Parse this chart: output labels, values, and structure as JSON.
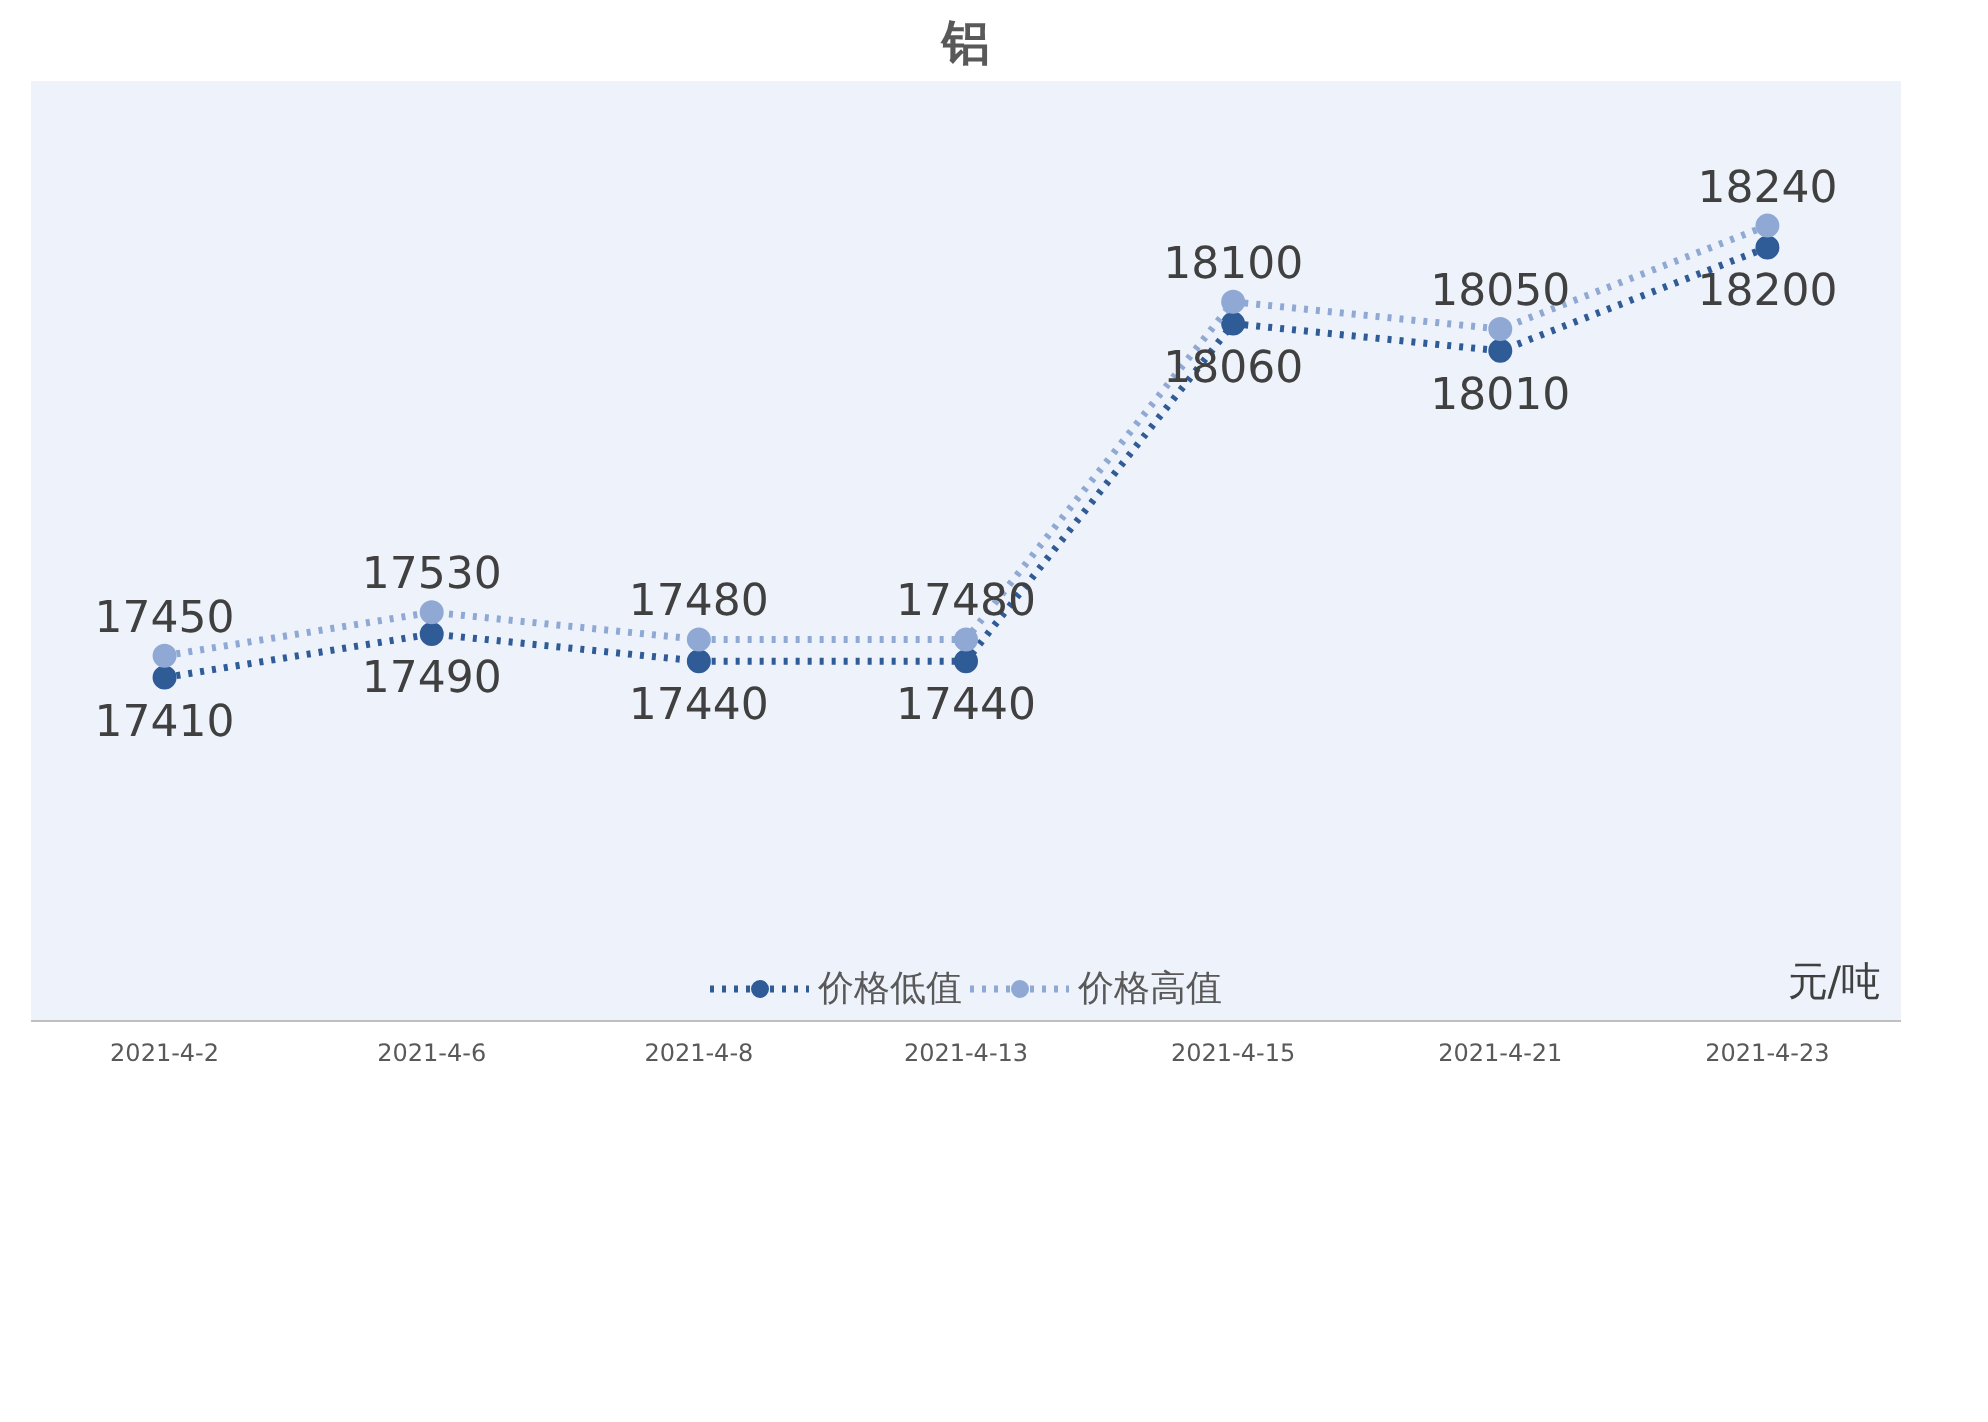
{
  "chart_data": {
    "type": "line",
    "title": "铝",
    "categories": [
      "2021-4-2",
      "2021-4-6",
      "2021-4-8",
      "2021-4-13",
      "2021-4-15",
      "2021-4-21",
      "2021-4-23"
    ],
    "series": [
      {
        "name": "价格低值",
        "color": "#2f5b96",
        "values": [
          17410,
          17490,
          17440,
          17440,
          18060,
          18010,
          18200
        ]
      },
      {
        "name": "价格高值",
        "color": "#8fa9d4",
        "values": [
          17450,
          17530,
          17480,
          17480,
          18100,
          18050,
          18240
        ]
      }
    ],
    "data_labels": true,
    "marker": "circle",
    "line_style": "dotted",
    "grid": false,
    "legend": "bottom",
    "annotations": [
      "元/吨"
    ]
  }
}
